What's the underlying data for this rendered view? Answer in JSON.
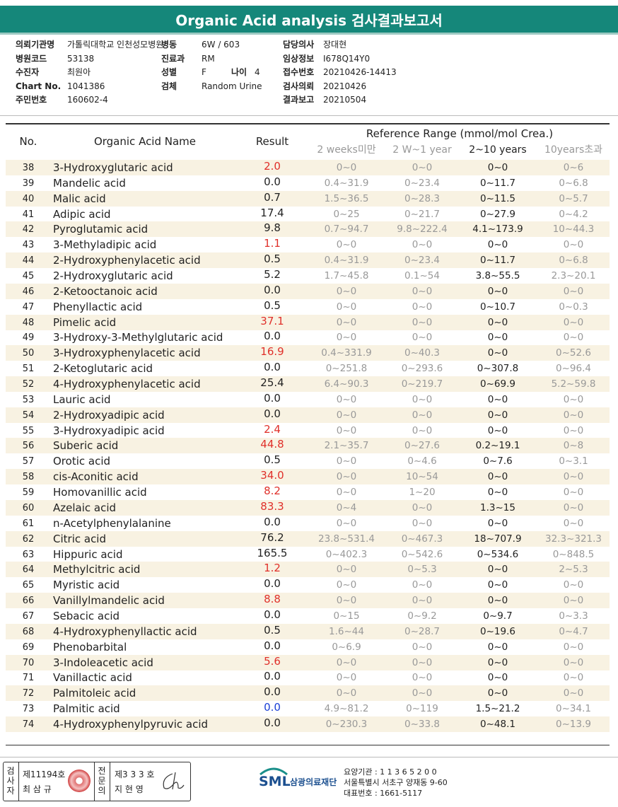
{
  "header": {
    "title": "Organic Acid analysis 검사결과보고서"
  },
  "info": [
    {
      "label": "의뢰기관명",
      "value": "가톨릭대학교 인천성모병원"
    },
    {
      "label": "병동",
      "value": "6W / 603"
    },
    {
      "label": "담당의사",
      "value": "장대현"
    },
    {
      "label": "병원코드",
      "value": "53138"
    },
    {
      "label": "진료과",
      "value": "RM"
    },
    {
      "label": "임상정보",
      "value": "I678Q14Y0"
    },
    {
      "label": "수진자",
      "value": "최원아"
    },
    {
      "label": "성별",
      "value": "F"
    },
    {
      "label": "나이",
      "value": "4"
    },
    {
      "label": "접수번호",
      "value": "20210426-14413"
    },
    {
      "label": "Chart No.",
      "value": "1041386"
    },
    {
      "label": "검체",
      "value": "Random Urine"
    },
    {
      "label": "검사의뢰",
      "value": "20210426"
    },
    {
      "label": "주민번호",
      "value": "160602-4"
    },
    {
      "label": "결과보고",
      "value": "20210504"
    }
  ],
  "table": {
    "columns": {
      "no": "No.",
      "name": "Organic Acid Name",
      "result": "Result",
      "reference": "Reference Range (mmol/mol Crea.)",
      "ranges": [
        "2 weeks미만",
        "2 W~1 year",
        "2~10 years",
        "10years초과"
      ]
    },
    "high_color": "#e0302a",
    "low_color": "#1a3fd6",
    "highlight_range": 2,
    "rows": [
      {
        "no": 38,
        "name": "3-Hydroxyglutaric acid",
        "result": "2.0",
        "flag": "high",
        "ranges": [
          "0~0",
          "0~0",
          "0~0",
          "0~6"
        ]
      },
      {
        "no": 39,
        "name": "Mandelic acid",
        "result": "0.0",
        "ranges": [
          "0.4~31.9",
          "0~23.4",
          "0~11.7",
          "0~6.8"
        ]
      },
      {
        "no": 40,
        "name": "Malic acid",
        "result": "0.7",
        "ranges": [
          "1.5~36.5",
          "0~28.3",
          "0~11.5",
          "0~5.7"
        ]
      },
      {
        "no": 41,
        "name": "Adipic acid",
        "result": "17.4",
        "ranges": [
          "0~25",
          "0~21.7",
          "0~27.9",
          "0~4.2"
        ]
      },
      {
        "no": 42,
        "name": "Pyroglutamic acid",
        "result": "9.8",
        "ranges": [
          "0.7~94.7",
          "9.8~222.4",
          "4.1~173.9",
          "10~44.3"
        ]
      },
      {
        "no": 43,
        "name": "3-Methyladipic acid",
        "result": "1.1",
        "flag": "high",
        "ranges": [
          "0~0",
          "0~0",
          "0~0",
          "0~0"
        ]
      },
      {
        "no": 44,
        "name": "2-Hydroxyphenylacetic acid",
        "result": "0.5",
        "ranges": [
          "0.4~31.9",
          "0~23.4",
          "0~11.7",
          "0~6.8"
        ]
      },
      {
        "no": 45,
        "name": "2-Hydroxyglutaric acid",
        "result": "5.2",
        "ranges": [
          "1.7~45.8",
          "0.1~54",
          "3.8~55.5",
          "2.3~20.1"
        ]
      },
      {
        "no": 46,
        "name": "2-Ketooctanoic acid",
        "result": "0.0",
        "ranges": [
          "0~0",
          "0~0",
          "0~0",
          "0~0"
        ]
      },
      {
        "no": 47,
        "name": "Phenyllactic acid",
        "result": "0.5",
        "ranges": [
          "0~0",
          "0~0",
          "0~10.7",
          "0~0.3"
        ]
      },
      {
        "no": 48,
        "name": "Pimelic acid",
        "result": "37.1",
        "flag": "high",
        "ranges": [
          "0~0",
          "0~0",
          "0~0",
          "0~0"
        ]
      },
      {
        "no": 49,
        "name": "3-Hydroxy-3-Methylglutaric acid",
        "result": "0.0",
        "ranges": [
          "0~0",
          "0~0",
          "0~0",
          "0~0"
        ]
      },
      {
        "no": 50,
        "name": "3-Hydroxyphenylacetic acid",
        "result": "16.9",
        "flag": "high",
        "ranges": [
          "0.4~331.9",
          "0~40.3",
          "0~0",
          "0~52.6"
        ]
      },
      {
        "no": 51,
        "name": "2-Ketoglutaric acid",
        "result": "0.0",
        "ranges": [
          "0~251.8",
          "0~293.6",
          "0~307.8",
          "0~96.4"
        ]
      },
      {
        "no": 52,
        "name": "4-Hydroxyphenylacetic acid",
        "result": "25.4",
        "ranges": [
          "6.4~90.3",
          "0~219.7",
          "0~69.9",
          "5.2~59.8"
        ]
      },
      {
        "no": 53,
        "name": "Lauric acid",
        "result": "0.0",
        "ranges": [
          "0~0",
          "0~0",
          "0~0",
          "0~0"
        ]
      },
      {
        "no": 54,
        "name": "2-Hydroxyadipic acid",
        "result": "0.0",
        "ranges": [
          "0~0",
          "0~0",
          "0~0",
          "0~0"
        ]
      },
      {
        "no": 55,
        "name": "3-Hydroxyadipic acid",
        "result": "2.4",
        "flag": "high",
        "ranges": [
          "0~0",
          "0~0",
          "0~0",
          "0~0"
        ]
      },
      {
        "no": 56,
        "name": "Suberic acid",
        "result": "44.8",
        "flag": "high",
        "ranges": [
          "2.1~35.7",
          "0~27.6",
          "0.2~19.1",
          "0~8"
        ]
      },
      {
        "no": 57,
        "name": "Orotic acid",
        "result": "0.5",
        "ranges": [
          "0~0",
          "0~4.6",
          "0~7.6",
          "0~3.1"
        ]
      },
      {
        "no": 58,
        "name": "cis-Aconitic acid",
        "result": "34.0",
        "flag": "high",
        "ranges": [
          "0~0",
          "10~54",
          "0~0",
          "0~0"
        ]
      },
      {
        "no": 59,
        "name": "Homovanillic acid",
        "result": "8.2",
        "flag": "high",
        "ranges": [
          "0~0",
          "1~20",
          "0~0",
          "0~0"
        ]
      },
      {
        "no": 60,
        "name": "Azelaic acid",
        "result": "83.3",
        "flag": "high",
        "ranges": [
          "0~4",
          "0~0",
          "1.3~15",
          "0~0"
        ]
      },
      {
        "no": 61,
        "name": "n-Acetylphenylalanine",
        "result": "0.0",
        "ranges": [
          "0~0",
          "0~0",
          "0~0",
          "0~0"
        ]
      },
      {
        "no": 62,
        "name": "Citric acid",
        "result": "76.2",
        "ranges": [
          "23.8~531.4",
          "0~467.3",
          "18~707.9",
          "32.3~321.3"
        ]
      },
      {
        "no": 63,
        "name": "Hippuric acid",
        "result": "165.5",
        "ranges": [
          "0~402.3",
          "0~542.6",
          "0~534.6",
          "0~848.5"
        ]
      },
      {
        "no": 64,
        "name": "Methylcitric acid",
        "result": "1.2",
        "flag": "high",
        "ranges": [
          "0~0",
          "0~5.3",
          "0~0",
          "2~5.3"
        ]
      },
      {
        "no": 65,
        "name": "Myristic acid",
        "result": "0.0",
        "ranges": [
          "0~0",
          "0~0",
          "0~0",
          "0~0"
        ]
      },
      {
        "no": 66,
        "name": "Vanillylmandelic acid",
        "result": "8.8",
        "flag": "high",
        "ranges": [
          "0~0",
          "0~0",
          "0~0",
          "0~0"
        ]
      },
      {
        "no": 67,
        "name": "Sebacic acid",
        "result": "0.0",
        "ranges": [
          "0~15",
          "0~9.2",
          "0~9.7",
          "0~3.3"
        ]
      },
      {
        "no": 68,
        "name": "4-Hydroxyphenyllactic acid",
        "result": "0.5",
        "ranges": [
          "1.6~44",
          "0~28.7",
          "0~19.6",
          "0~4.7"
        ]
      },
      {
        "no": 69,
        "name": "Phenobarbital",
        "result": "0.0",
        "ranges": [
          "0~6.9",
          "0~0",
          "0~0",
          "0~0"
        ]
      },
      {
        "no": 70,
        "name": "3-Indoleacetic acid",
        "result": "5.6",
        "flag": "high",
        "ranges": [
          "0~0",
          "0~0",
          "0~0",
          "0~0"
        ]
      },
      {
        "no": 71,
        "name": "Vanillactic acid",
        "result": "0.0",
        "ranges": [
          "0~0",
          "0~0",
          "0~0",
          "0~0"
        ]
      },
      {
        "no": 72,
        "name": "Palmitoleic acid",
        "result": "0.0",
        "ranges": [
          "0~0",
          "0~0",
          "0~0",
          "0~0"
        ]
      },
      {
        "no": 73,
        "name": "Palmitic acid",
        "result": "0.0",
        "flag": "low",
        "ranges": [
          "4.9~81.2",
          "0~119",
          "1.5~21.2",
          "0~34.1"
        ]
      },
      {
        "no": 74,
        "name": "4-Hydroxyphenylpyruvic acid",
        "result": "0.0",
        "ranges": [
          "0~230.3",
          "0~33.8",
          "0~48.1",
          "0~13.9"
        ]
      }
    ]
  },
  "footer": {
    "tester_title": "검사자",
    "tester_no": "제11194호",
    "tester_name": "최 삼 규",
    "doctor_title": "전문의",
    "doctor_no": "제3 3 3 호",
    "doctor_name": "지 현 영",
    "logo": "SML",
    "org": "삼광의료재단",
    "code": "요양기관 : 1 1 3 6 5 2 0 0",
    "address": "서울특별시 서초구 양재동 9-60",
    "phone": "대표번호 : 1661-5117"
  }
}
